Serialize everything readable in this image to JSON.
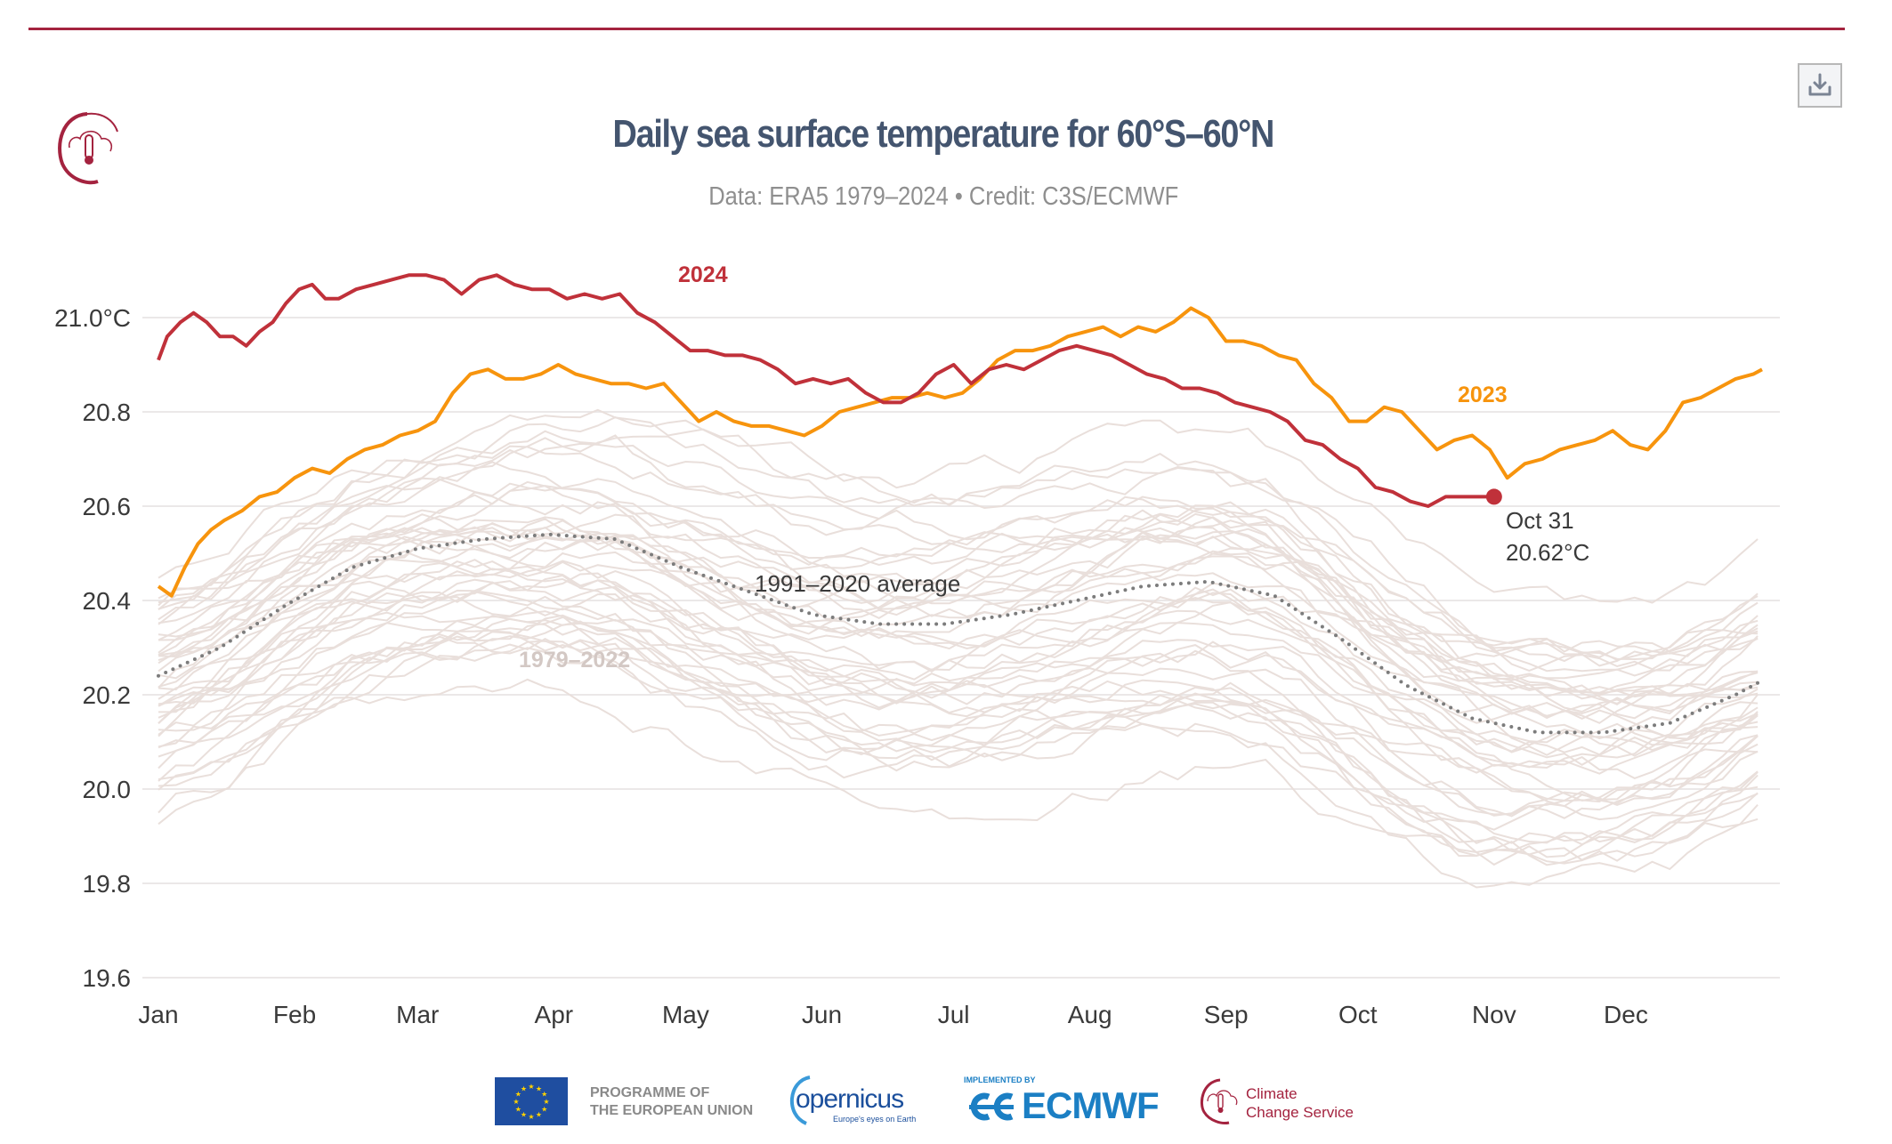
{
  "header": {
    "title": "Daily sea surface temperature for 60°S–60°N",
    "subtitle": "Data: ERA5 1979–2024 • Credit: C3S/ECMWF",
    "download_button": "download-icon"
  },
  "colors": {
    "accent_rule": "#a4233f",
    "title": "#44556f",
    "series_2024": "#c0313a",
    "series_2023": "#f7940d",
    "average": "#7c7c7c",
    "historical": "#e9dfdb",
    "grid": "#ebe8e8"
  },
  "chart_data": {
    "type": "line",
    "title": "Daily sea surface temperature for 60°S–60°N",
    "subtitle": "Data: ERA5 1979–2024 • Credit: C3S/ECMWF",
    "xlabel": "",
    "ylabel": "",
    "x_unit": "day of year",
    "xlim": [
      1,
      366
    ],
    "ylim": [
      19.6,
      21.1
    ],
    "grid": true,
    "y_ticks": [
      19.6,
      19.8,
      20.0,
      20.2,
      20.4,
      20.6,
      20.8,
      21.0
    ],
    "y_tick_labels": [
      "19.6",
      "19.8",
      "20.0",
      "20.2",
      "20.4",
      "20.6",
      "20.8",
      "21.0°C"
    ],
    "x_ticks": [
      1,
      32,
      60,
      91,
      121,
      152,
      182,
      213,
      244,
      274,
      305,
      335
    ],
    "x_tick_labels": [
      "Jan",
      "Feb",
      "Mar",
      "Apr",
      "May",
      "Jun",
      "Jul",
      "Aug",
      "Sep",
      "Oct",
      "Nov",
      "Dec"
    ],
    "series": [
      {
        "name": "2024",
        "label": "2024",
        "days": [
          1,
          3,
          6,
          9,
          12,
          15,
          18,
          21,
          24,
          27,
          30,
          33,
          36,
          39,
          42,
          46,
          50,
          54,
          58,
          62,
          66,
          70,
          74,
          78,
          82,
          86,
          90,
          94,
          98,
          102,
          106,
          110,
          114,
          118,
          122,
          126,
          130,
          134,
          138,
          142,
          146,
          150,
          154,
          158,
          162,
          166,
          170,
          174,
          178,
          182,
          186,
          190,
          194,
          198,
          202,
          206,
          210,
          214,
          218,
          222,
          226,
          230,
          234,
          238,
          242,
          246,
          250,
          254,
          258,
          262,
          266,
          270,
          274,
          278,
          282,
          286,
          290,
          294,
          298,
          302,
          305
        ],
        "values": [
          20.91,
          20.96,
          20.99,
          21.01,
          20.99,
          20.96,
          20.96,
          20.94,
          20.97,
          20.99,
          21.03,
          21.06,
          21.07,
          21.04,
          21.04,
          21.06,
          21.07,
          21.08,
          21.09,
          21.09,
          21.08,
          21.05,
          21.08,
          21.09,
          21.07,
          21.06,
          21.06,
          21.04,
          21.05,
          21.04,
          21.05,
          21.01,
          20.99,
          20.96,
          20.93,
          20.93,
          20.92,
          20.92,
          20.91,
          20.89,
          20.86,
          20.87,
          20.86,
          20.87,
          20.84,
          20.82,
          20.82,
          20.84,
          20.88,
          20.9,
          20.86,
          20.89,
          20.9,
          20.89,
          20.91,
          20.93,
          20.94,
          20.93,
          20.92,
          20.9,
          20.88,
          20.87,
          20.85,
          20.85,
          20.84,
          20.82,
          20.81,
          20.8,
          20.78,
          20.74,
          20.73,
          20.7,
          20.68,
          20.64,
          20.63,
          20.61,
          20.6,
          20.62,
          20.62,
          20.62,
          20.62
        ],
        "end_annotation": {
          "date": "Oct 31",
          "value": "20.62°C"
        }
      },
      {
        "name": "2023",
        "label": "2023",
        "days": [
          1,
          4,
          7,
          10,
          13,
          16,
          20,
          24,
          28,
          32,
          36,
          40,
          44,
          48,
          52,
          56,
          60,
          64,
          68,
          72,
          76,
          80,
          84,
          88,
          92,
          96,
          100,
          104,
          108,
          112,
          116,
          120,
          124,
          128,
          132,
          136,
          140,
          144,
          148,
          152,
          156,
          160,
          164,
          168,
          172,
          176,
          180,
          184,
          188,
          192,
          196,
          200,
          204,
          208,
          212,
          216,
          220,
          224,
          228,
          232,
          236,
          240,
          244,
          248,
          252,
          256,
          260,
          264,
          268,
          272,
          276,
          280,
          284,
          288,
          292,
          296,
          300,
          304,
          308,
          312,
          316,
          320,
          324,
          328,
          332,
          336,
          340,
          344,
          348,
          352,
          356,
          360,
          364,
          366
        ],
        "values": [
          20.43,
          20.41,
          20.47,
          20.52,
          20.55,
          20.57,
          20.59,
          20.62,
          20.63,
          20.66,
          20.68,
          20.67,
          20.7,
          20.72,
          20.73,
          20.75,
          20.76,
          20.78,
          20.84,
          20.88,
          20.89,
          20.87,
          20.87,
          20.88,
          20.9,
          20.88,
          20.87,
          20.86,
          20.86,
          20.85,
          20.86,
          20.82,
          20.78,
          20.8,
          20.78,
          20.77,
          20.77,
          20.76,
          20.75,
          20.77,
          20.8,
          20.81,
          20.82,
          20.83,
          20.83,
          20.84,
          20.83,
          20.84,
          20.87,
          20.91,
          20.93,
          20.93,
          20.94,
          20.96,
          20.97,
          20.98,
          20.96,
          20.98,
          20.97,
          20.99,
          21.02,
          21.0,
          20.95,
          20.95,
          20.94,
          20.92,
          20.91,
          20.86,
          20.83,
          20.78,
          20.78,
          20.81,
          20.8,
          20.76,
          20.72,
          20.74,
          20.75,
          20.72,
          20.66,
          20.69,
          20.7,
          20.72,
          20.73,
          20.74,
          20.76,
          20.73,
          20.72,
          20.76,
          20.82,
          20.83,
          20.85,
          20.87,
          20.88,
          20.89
        ]
      },
      {
        "name": "1991–2020 average",
        "label": "1991–2020 average",
        "style": "dotted",
        "days": [
          1,
          15,
          30,
          45,
          60,
          75,
          90,
          105,
          120,
          135,
          150,
          165,
          180,
          195,
          210,
          225,
          240,
          255,
          270,
          285,
          300,
          315,
          330,
          345,
          360,
          366
        ],
        "values": [
          20.24,
          20.3,
          20.39,
          20.47,
          20.51,
          20.53,
          20.54,
          20.53,
          20.47,
          20.42,
          20.37,
          20.35,
          20.35,
          20.37,
          20.4,
          20.43,
          20.44,
          20.41,
          20.32,
          20.22,
          20.15,
          20.12,
          20.12,
          20.14,
          20.2,
          20.23
        ]
      }
    ],
    "historical": {
      "label": "1979–2022",
      "years": [
        1979,
        1980,
        1981,
        1982,
        1983,
        1984,
        1985,
        1986,
        1987,
        1988,
        1989,
        1990,
        1991,
        1992,
        1993,
        1994,
        1995,
        1996,
        1997,
        1998,
        1999,
        2000,
        2001,
        2002,
        2003,
        2004,
        2005,
        2006,
        2007,
        2008,
        2009,
        2010,
        2011,
        2012,
        2013,
        2014,
        2015,
        2016,
        2017,
        2018,
        2019,
        2020,
        2021,
        2022
      ],
      "offset_from_average": [
        -0.3,
        -0.22,
        -0.25,
        -0.18,
        -0.05,
        -0.28,
        -0.32,
        -0.24,
        -0.1,
        -0.02,
        -0.26,
        -0.14,
        -0.12,
        -0.2,
        -0.16,
        -0.15,
        -0.08,
        -0.19,
        0.02,
        0.1,
        -0.14,
        -0.1,
        -0.03,
        0.04,
        0.03,
        0.0,
        0.06,
        0.02,
        -0.06,
        -0.08,
        0.08,
        0.12,
        -0.04,
        0.05,
        0.03,
        0.1,
        0.18,
        0.26,
        0.16,
        0.12,
        0.2,
        0.22,
        0.14,
        0.18
      ]
    }
  },
  "footer": {
    "eu_line1": "PROGRAMME OF",
    "eu_line2": "THE EUROPEAN UNION",
    "copernicus": "opernicus",
    "copernicus_tag": "Europe's eyes on Earth",
    "ecmwf_implemented": "IMPLEMENTED BY",
    "ecmwf": "ECMWF",
    "c3s_line1": "Climate",
    "c3s_line2": "Change Service"
  }
}
